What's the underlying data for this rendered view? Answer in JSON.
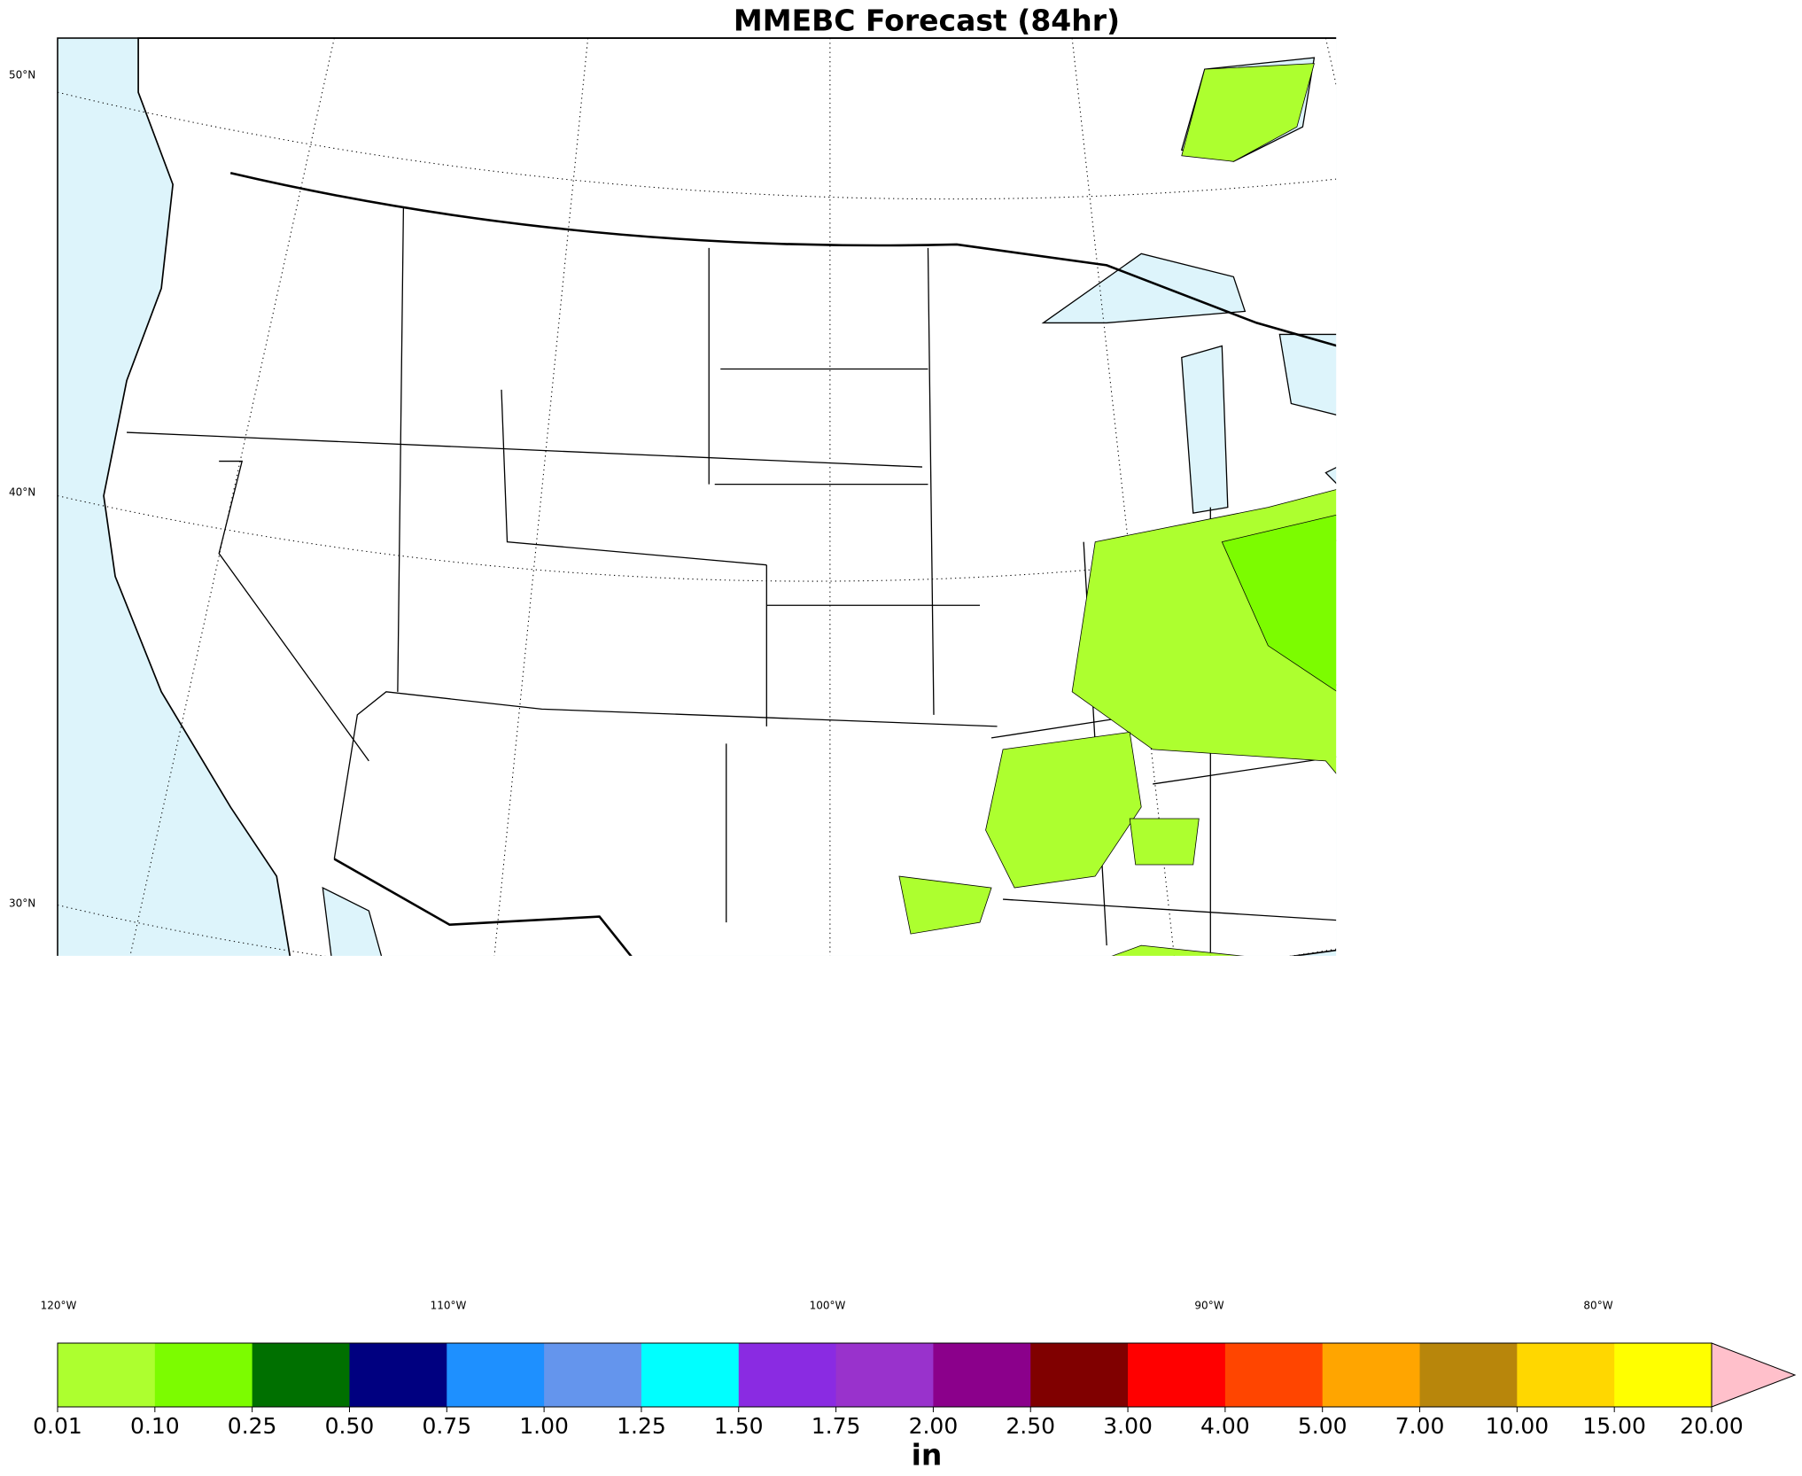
{
  "title": "MMEBC Forecast (84hr)",
  "lat_labels": [
    "50°N",
    "40°N",
    "30°N"
  ],
  "lon_labels": [
    "120°W",
    "110°W",
    "100°W",
    "90°W",
    "80°W"
  ],
  "colorbar": {
    "label": "in",
    "ticks": [
      0.01,
      {
        "value": 0.1,
        "label": "0.10"
      },
      {
        "value": 0.25,
        "label": "0.25"
      },
      {
        "value": 0.5,
        "label": "0.50"
      },
      {
        "value": 0.75,
        "label": "0.75"
      },
      {
        "value": 1,
        "label": "1.00"
      },
      {
        "value": 1.25,
        "label": "1.25"
      },
      {
        "value": 1.5,
        "label": "1.50"
      },
      {
        "value": 1.75,
        "label": "1.75"
      },
      {
        "value": 2,
        "label": "2.00"
      },
      {
        "value": 2.5,
        "label": "2.50"
      },
      {
        "value": 3,
        "label": "3.00"
      },
      {
        "value": 4,
        "label": "4.00"
      },
      {
        "value": 5,
        "label": "5.00"
      },
      {
        "value": 7,
        "label": "7.00"
      },
      {
        "value": 10,
        "label": "10.00"
      },
      {
        "value": 15,
        "label": "15.00"
      },
      {
        "value": 20,
        "label": "20.00"
      }
    ],
    "colors": [
      "#adff2f",
      "#7cfc00",
      "#007000",
      "#000080",
      "#1e90ff",
      "#6495ed",
      "#00ffff",
      "#8a2be2",
      "#9932cc",
      "#8b008b",
      "#800000",
      "#ff0000",
      "#ff4500",
      "#ffa500",
      "#b8860b",
      "#ffd700",
      "#ffff00"
    ],
    "extend_color": "#ffc0cb"
  }
}
